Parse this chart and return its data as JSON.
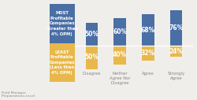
{
  "categories": [
    "Disagree",
    "Neither\nAgree Nor\nDisagree",
    "Agree",
    "Strongly\nAgree"
  ],
  "most_values": [
    50,
    60,
    68,
    76
  ],
  "least_values": [
    50,
    40,
    32,
    24
  ],
  "most_color": "#4a6fa5",
  "least_color": "#e8b84b",
  "most_label_line1": "MOST",
  "most_label_line2": "Profitable",
  "most_label_line3": "Companies",
  "most_label_line4": "(Greater than",
  "most_label_line5": "4% OPM)",
  "least_label_line1": "LEAST",
  "least_label_line2": "Profitable",
  "least_label_line3": "Companies",
  "least_label_line4": "(Less than",
  "least_label_line5": "4% OPM)",
  "x_label": "Field Manager\nPreparedness Level",
  "bg_color": "#f0eeeb",
  "bar_gap": 0.02,
  "bar_width": 0.38
}
